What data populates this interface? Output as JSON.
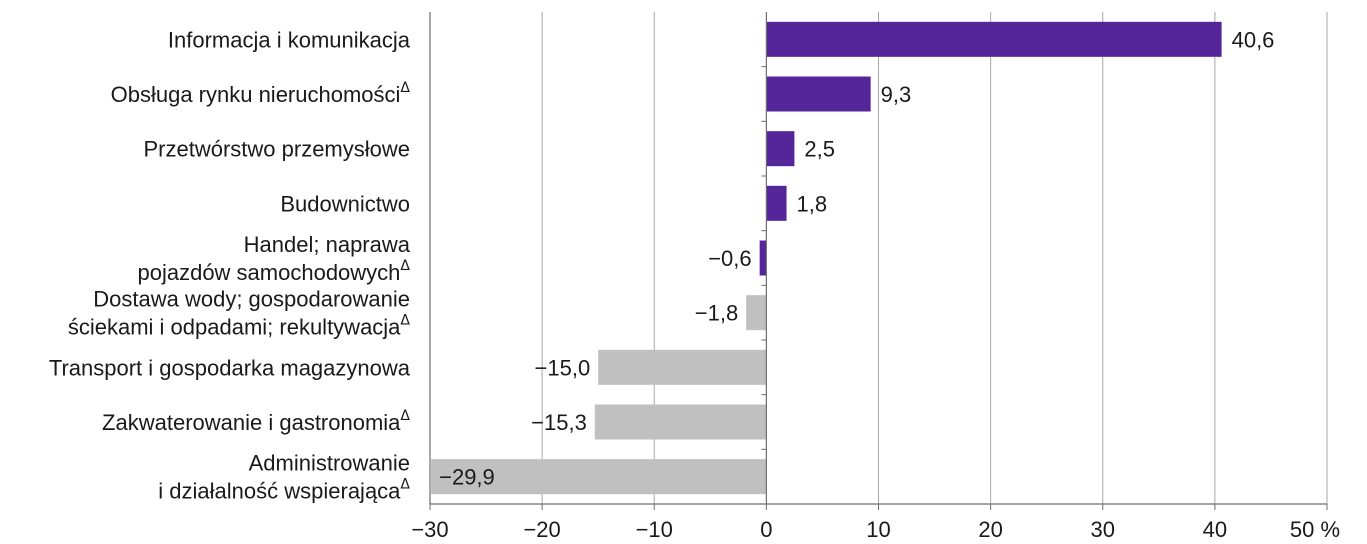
{
  "chart_data": {
    "type": "bar",
    "orientation": "horizontal",
    "unit": "%",
    "categories": [
      {
        "lines": [
          "Informacja i komunikacja"
        ],
        "delta": false
      },
      {
        "lines": [
          "Obsługa rynku nieruchomości"
        ],
        "delta": true
      },
      {
        "lines": [
          "Przetwórstwo przemysłowe"
        ],
        "delta": false
      },
      {
        "lines": [
          "Budownictwo"
        ],
        "delta": false
      },
      {
        "lines": [
          "Handel; naprawa",
          "pojazdów samochodowych"
        ],
        "delta": true
      },
      {
        "lines": [
          "Dostawa wody; gospodarowanie",
          "ściekami i odpadami; rekultywacja"
        ],
        "delta": true
      },
      {
        "lines": [
          "Transport i gospodarka magazynowa"
        ],
        "delta": false
      },
      {
        "lines": [
          "Zakwaterowanie i gastronomia"
        ],
        "delta": true
      },
      {
        "lines": [
          "Administrowanie",
          "i działalność wspierająca"
        ],
        "delta": true
      }
    ],
    "values": [
      40.6,
      9.3,
      2.5,
      1.8,
      -0.6,
      -1.8,
      -15.0,
      -15.3,
      -29.9
    ],
    "value_labels": [
      "40,6",
      "9,3",
      "2,5",
      "1,8",
      "−0,6",
      "−1,8",
      "−15,0",
      "−15,3",
      "−29,9"
    ],
    "bar_groups": [
      "highlight",
      "highlight",
      "highlight",
      "highlight",
      "highlight",
      "muted",
      "muted",
      "muted",
      "muted"
    ],
    "xlim": [
      -30,
      50
    ],
    "xticks": [
      -30,
      -20,
      -10,
      0,
      10,
      20,
      30,
      40,
      50
    ],
    "xtick_labels": [
      "−30",
      "−20",
      "−10",
      "0",
      "10",
      "20",
      "30",
      "40",
      "50 %"
    ],
    "delta_symbol": "Δ",
    "grid": true,
    "colors": {
      "highlight": "#55259a",
      "muted": "#c0c0c0",
      "grid": "#a8a8a8",
      "axis": "#6e6e6e",
      "text": "#1a1a1a"
    }
  }
}
